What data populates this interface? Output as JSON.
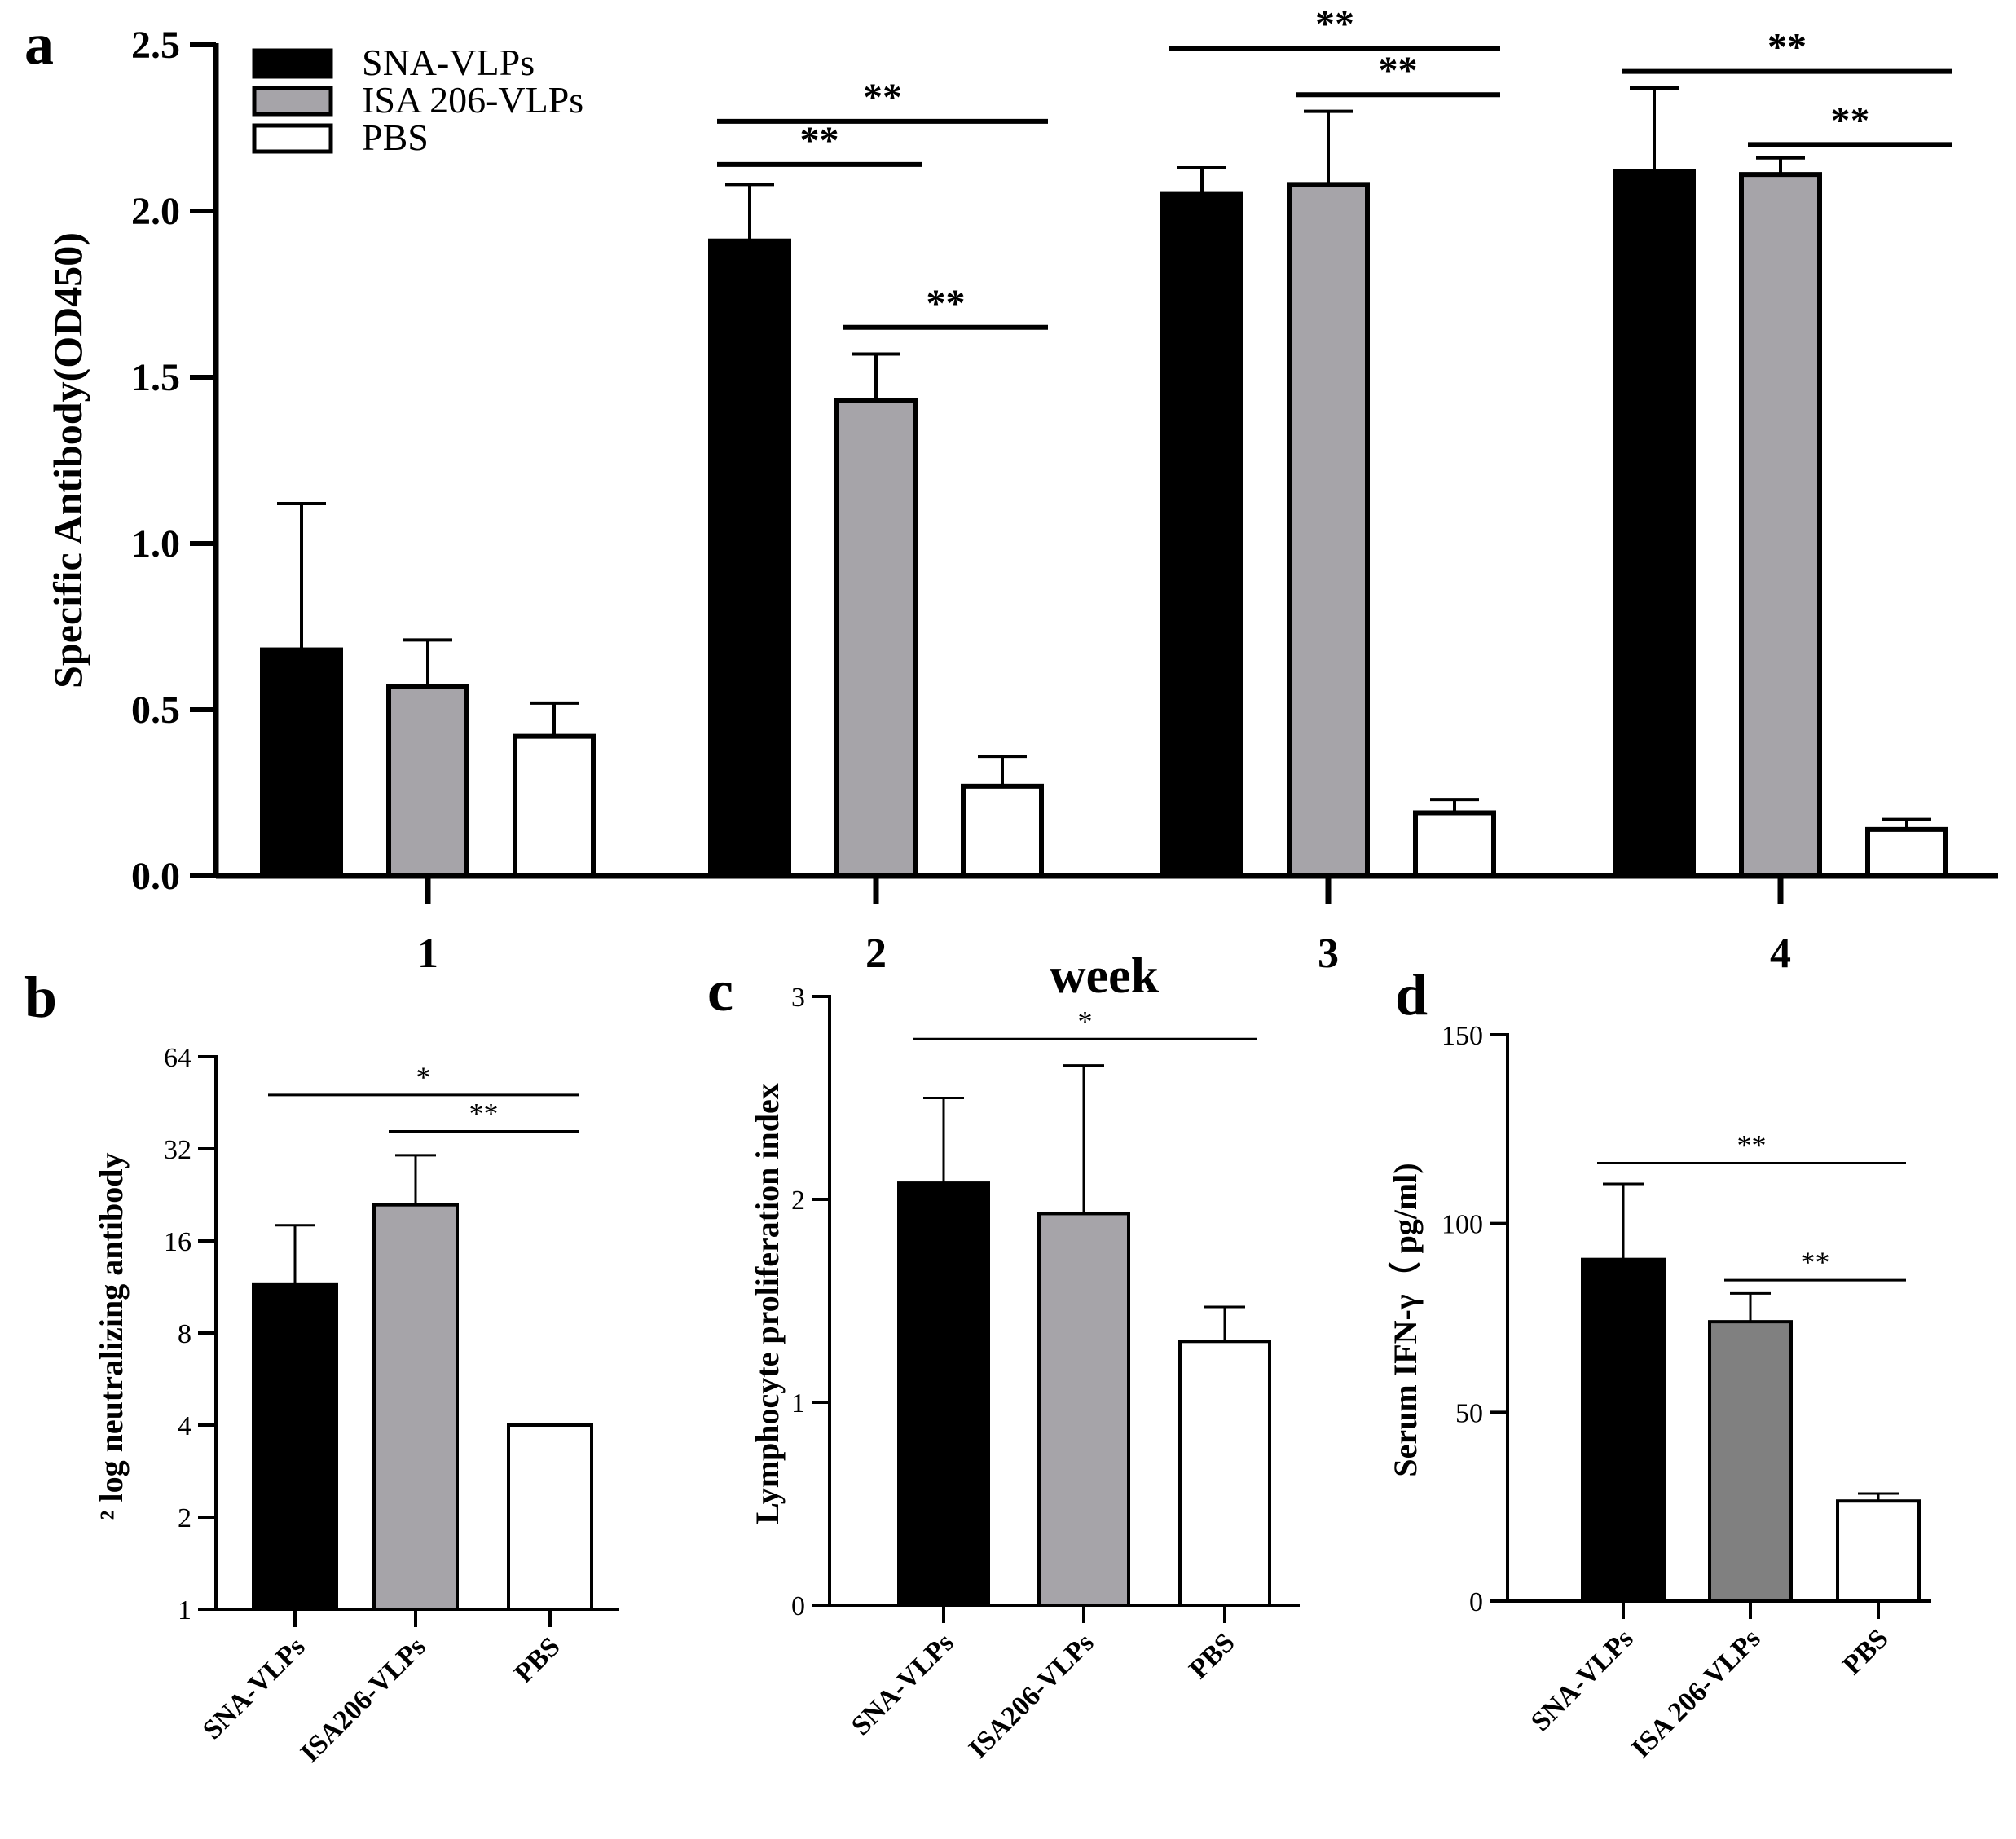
{
  "colors": {
    "sna": "#000000",
    "isa": "#a6a4a9",
    "isa_d": "#808080",
    "pbs": "#ffffff",
    "line": "#000000"
  },
  "chart_data": [
    {
      "panel": "a",
      "type": "bar",
      "title": "",
      "xlabel": "week",
      "ylabel": "Specific Antibody(OD450)",
      "ylim": [
        0,
        2.5
      ],
      "yticks": [
        "0.0",
        "0.5",
        "1.0",
        "1.5",
        "2.0",
        "2.5"
      ],
      "categories": [
        "1",
        "2",
        "3",
        "4"
      ],
      "legend": [
        "SNA-VLPs",
        "ISA 206-VLPs",
        "PBS"
      ],
      "series": [
        {
          "name": "SNA-VLPs",
          "values": [
            0.68,
            1.91,
            2.05,
            2.12
          ],
          "errors": [
            0.44,
            0.17,
            0.08,
            0.25
          ]
        },
        {
          "name": "ISA 206-VLPs",
          "values": [
            0.57,
            1.43,
            2.08,
            2.11
          ],
          "errors": [
            0.14,
            0.14,
            0.22,
            0.05
          ]
        },
        {
          "name": "PBS",
          "values": [
            0.42,
            0.27,
            0.19,
            0.14
          ],
          "errors": [
            0.1,
            0.09,
            0.04,
            0.03
          ]
        }
      ],
      "significance": [
        {
          "label": "**",
          "category": 1,
          "from": 0,
          "to": 2,
          "y": 2.27
        },
        {
          "label": "**",
          "category": 1,
          "from": 0,
          "to": 1,
          "y": 2.14
        },
        {
          "label": "**",
          "category": 1,
          "from": 1,
          "to": 2,
          "y": 1.65
        },
        {
          "label": "**",
          "category": 2,
          "from": 0,
          "to": 2,
          "y": 2.49
        },
        {
          "label": "**",
          "category": 2,
          "from": 1,
          "to": 2,
          "y": 2.35
        },
        {
          "label": "**",
          "category": 3,
          "from": 0,
          "to": 2,
          "y": 2.42
        },
        {
          "label": "**",
          "category": 3,
          "from": 1,
          "to": 2,
          "y": 2.2
        }
      ]
    },
    {
      "panel": "b",
      "type": "bar",
      "ylabel": "² log neutralizing antibody",
      "yscale": "log2",
      "ylim": [
        1,
        64
      ],
      "yticks": [
        "1",
        "2",
        "4",
        "8",
        "16",
        "32",
        "64"
      ],
      "categories": [
        "SNA-VLPs",
        "ISA206-VLPs",
        "PBS"
      ],
      "values": [
        11.5,
        21,
        4
      ],
      "errors": [
        6.5,
        9.5,
        0
      ],
      "significance": [
        {
          "label": "*",
          "from": 0,
          "to": 2,
          "y": 48
        },
        {
          "label": "**",
          "from": 1,
          "to": 2,
          "y": 36.5
        }
      ]
    },
    {
      "panel": "c",
      "type": "bar",
      "ylabel": "Lymphocyte proliferation index",
      "ylim": [
        0,
        3
      ],
      "yticks": [
        "0",
        "1",
        "2",
        "3"
      ],
      "categories": [
        "SNA-VLPs",
        "ISA206-VLPs",
        "PBS"
      ],
      "values": [
        2.08,
        1.93,
        1.3
      ],
      "errors": [
        0.42,
        0.73,
        0.17
      ],
      "significance": [
        {
          "label": "*",
          "from": 0,
          "to": 2,
          "y": 2.79
        }
      ]
    },
    {
      "panel": "d",
      "type": "bar",
      "ylabel": "Serum IFN-γ（ pg/ml)",
      "ylim": [
        0,
        150
      ],
      "yticks": [
        "0",
        "50",
        "100",
        "150"
      ],
      "categories": [
        "SNA-VLPs",
        "ISA 206-VLPs",
        "PBS"
      ],
      "values": [
        90.5,
        74,
        26.5
      ],
      "errors": [
        20,
        7.5,
        2
      ],
      "significance": [
        {
          "label": "**",
          "from": 0,
          "to": 2,
          "y": 116
        },
        {
          "label": "**",
          "from": 1,
          "to": 2,
          "y": 85
        }
      ]
    }
  ]
}
